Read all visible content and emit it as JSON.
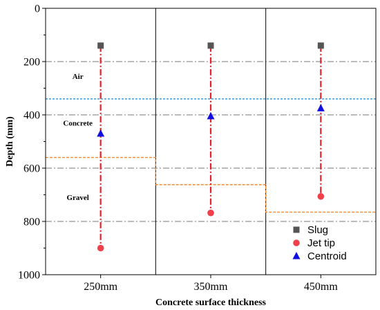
{
  "chart_data": {
    "type": "scatter",
    "xlabel": "Concrete surface thickness",
    "ylabel": "Depth (mm)",
    "categories": [
      "250mm",
      "350mm",
      "450mm"
    ],
    "ylim": [
      0,
      1000
    ],
    "y_inverted": true,
    "yticks": [
      0,
      200,
      400,
      600,
      800,
      1000
    ],
    "grid_lines_y": [
      200,
      400,
      600,
      800
    ],
    "series": [
      {
        "name": "Slug",
        "marker": "square",
        "color": "#555555",
        "values": [
          140,
          140,
          140
        ]
      },
      {
        "name": "Jet tip",
        "marker": "circle",
        "color": "#f0404a",
        "values": [
          900,
          768,
          706
        ]
      },
      {
        "name": "Centroid",
        "marker": "triangle",
        "color": "#1010e0",
        "values": [
          470,
          405,
          375
        ]
      }
    ],
    "air_concrete_boundary": 340,
    "concrete_gravel_boundary": [
      560,
      662,
      765
    ],
    "layer_labels": [
      {
        "text": "Air",
        "category_index": 0,
        "depth": 265
      },
      {
        "text": "Concrete",
        "category_index": 0,
        "depth": 440
      },
      {
        "text": "Gravel",
        "category_index": 0,
        "depth": 720
      }
    ],
    "legend_position": "bottom-right",
    "colors": {
      "drop_line": "#e8202a",
      "air_boundary": "#2090e0",
      "gravel_boundary": "#f08a30",
      "grid": "#777777"
    }
  }
}
